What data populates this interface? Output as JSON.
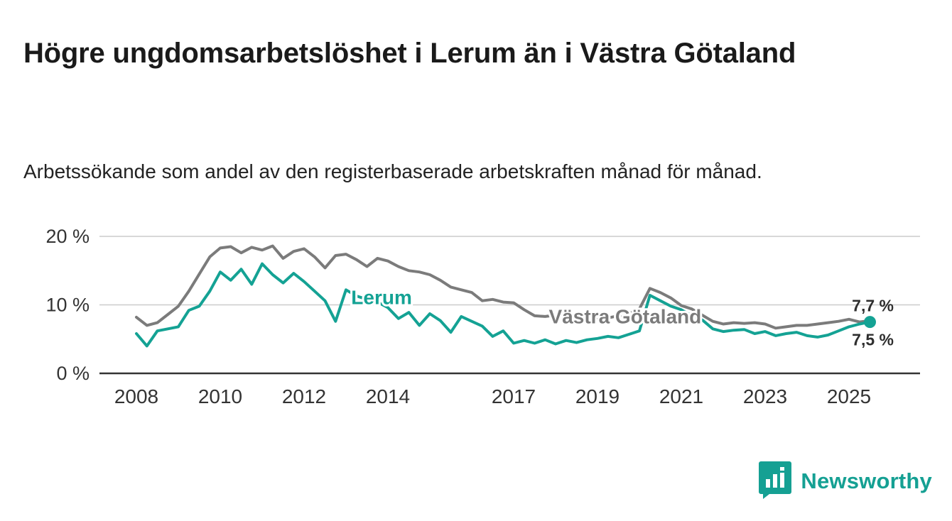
{
  "title": "Högre ungdomsarbetslöshet i Lerum än i Västra Götaland",
  "subtitle": "Arbetssökande som andel av den registerbaserade arbetskraften månad för månad.",
  "logo": {
    "text": "Newsworthy"
  },
  "colors": {
    "lerum": "#14A294",
    "vastra": "#7b7b7b",
    "axis": "#333333",
    "grid": "#cccccc",
    "end_label": "#2e2e2e",
    "brand": "#15a093"
  },
  "chart_data": {
    "type": "line",
    "title": "Högre ungdomsarbetslöshet i Lerum än i Västra Götaland",
    "subtitle": "Arbetssökande som andel av den registerbaserade arbetskraften månad för månad.",
    "x_unit": "decimal_year",
    "x_start": 2008.0,
    "x_step": 0.25,
    "xlim": [
      2008.0,
      2025.5
    ],
    "ylim": [
      0,
      21
    ],
    "grid": true,
    "x_ticks": [
      2008,
      2010,
      2012,
      2014,
      2017,
      2019,
      2021,
      2023,
      2025
    ],
    "y_ticks": [
      0,
      10,
      20
    ],
    "y_tick_labels": [
      "0 %",
      "10 %",
      "20 %"
    ],
    "series": [
      {
        "name": "Västra Götaland",
        "color": "#7b7b7b",
        "end_label": "7,7 %",
        "end_marker": false,
        "values": [
          8.2,
          7.0,
          7.4,
          8.6,
          9.8,
          12.0,
          14.5,
          17.0,
          18.3,
          18.5,
          17.6,
          18.4,
          18.0,
          18.6,
          16.8,
          17.8,
          18.2,
          17.0,
          15.4,
          17.2,
          17.4,
          16.6,
          15.6,
          16.8,
          16.4,
          15.6,
          15.0,
          14.8,
          14.4,
          13.6,
          12.6,
          12.2,
          11.8,
          10.6,
          10.8,
          10.4,
          10.3,
          9.3,
          8.4,
          8.3,
          8.5,
          8.2,
          8.3,
          8.0,
          7.9,
          8.1,
          8.4,
          8.7,
          9.4,
          12.4,
          11.8,
          11.0,
          9.9,
          9.4,
          8.5,
          7.6,
          7.2,
          7.4,
          7.3,
          7.4,
          7.2,
          6.6,
          6.8,
          7.0,
          7.0,
          7.2,
          7.4,
          7.6,
          7.9,
          7.5,
          7.7
        ]
      },
      {
        "name": "Lerum",
        "color": "#14A294",
        "end_label": "7,5 %",
        "end_marker": true,
        "values": [
          5.8,
          4.0,
          6.2,
          6.5,
          6.8,
          9.2,
          9.8,
          12.0,
          14.8,
          13.6,
          15.2,
          13.0,
          16.0,
          14.4,
          13.2,
          14.6,
          13.4,
          12.0,
          10.6,
          7.6,
          12.2,
          11.3,
          10.8,
          10.4,
          9.6,
          8.0,
          8.9,
          7.0,
          8.7,
          7.7,
          6.0,
          8.3,
          7.6,
          6.9,
          5.4,
          6.2,
          4.4,
          4.8,
          4.4,
          4.9,
          4.3,
          4.8,
          4.5,
          4.9,
          5.1,
          5.4,
          5.2,
          5.7,
          6.2,
          11.4,
          10.6,
          9.8,
          9.3,
          8.4,
          7.8,
          6.5,
          6.1,
          6.3,
          6.4,
          5.8,
          6.1,
          5.5,
          5.8,
          6.0,
          5.5,
          5.3,
          5.6,
          6.2,
          6.8,
          7.2,
          7.5
        ]
      }
    ],
    "annotations": [
      {
        "text": "Lerum",
        "x": 2013.85,
        "y": 11.1,
        "color": "#14A294"
      },
      {
        "text": "Västra Götaland",
        "x": 2019.66,
        "y": 8.3,
        "color": "#7b7b7b"
      }
    ],
    "legend_position": "inline",
    "end_labels": [
      "7,7 %",
      "7,5 %"
    ]
  }
}
